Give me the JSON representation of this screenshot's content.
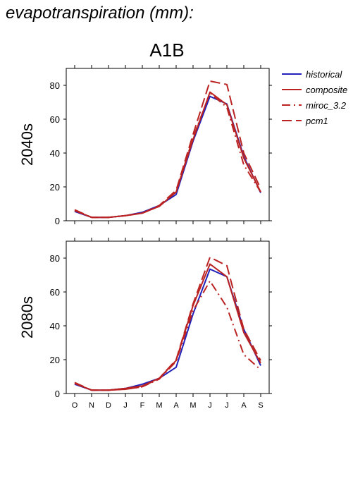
{
  "title": "evapotranspiration (mm):",
  "scenario": "A1B",
  "colors": {
    "historical": "#2222bb",
    "future": "#bb2222"
  },
  "chart_data": {
    "type": "line",
    "categories": [
      "O",
      "N",
      "D",
      "J",
      "F",
      "M",
      "A",
      "M",
      "J",
      "J",
      "A",
      "S"
    ],
    "ylim": [
      0,
      90
    ],
    "yticks": [
      0,
      20,
      40,
      60,
      80
    ],
    "legend": [
      {
        "key": "historical",
        "label": "historical",
        "color": "#2222bb",
        "dash": "solid"
      },
      {
        "key": "composite",
        "label": "composite",
        "color": "#bb2222",
        "dash": "solid"
      },
      {
        "key": "miroc",
        "label": "miroc_3.2",
        "color": "#bb2222",
        "dash": "dashdot"
      },
      {
        "key": "pcm1",
        "label": "pcm1",
        "color": "#bb2222",
        "dash": "dash"
      }
    ],
    "panels": [
      {
        "label": "2040s",
        "series": [
          {
            "key": "historical",
            "values": [
              5.5,
              2,
              2,
              3,
              5,
              9,
              15.5,
              47,
              73.5,
              69,
              38,
              16.5
            ]
          },
          {
            "key": "composite",
            "values": [
              6,
              2,
              2,
              3,
              4.5,
              8.5,
              17,
              48,
              76,
              68.5,
              37,
              17
            ]
          },
          {
            "key": "miroc",
            "values": [
              6,
              2,
              2,
              3,
              4.5,
              8.5,
              17,
              49,
              75.5,
              67,
              33,
              17
            ]
          },
          {
            "key": "pcm1",
            "values": [
              6.5,
              2,
              2,
              3,
              4.5,
              9,
              18,
              51,
              82.5,
              80.5,
              40,
              19
            ]
          }
        ]
      },
      {
        "label": "2080s",
        "series": [
          {
            "key": "historical",
            "values": [
              5.5,
              2,
              2,
              3,
              5.5,
              9,
              15.5,
              47,
              73.5,
              69,
              38,
              16.5
            ]
          },
          {
            "key": "composite",
            "values": [
              6,
              2,
              2,
              3,
              4.5,
              9,
              19.5,
              52,
              76.5,
              69,
              36,
              18
            ]
          },
          {
            "key": "miroc",
            "values": [
              6,
              2,
              2,
              2.5,
              4,
              8.5,
              19,
              49,
              66.5,
              51,
              23,
              14
            ]
          },
          {
            "key": "pcm1",
            "values": [
              6.5,
              2,
              2,
              2.5,
              4,
              9,
              20,
              53,
              80.5,
              75.5,
              38,
              19.5
            ]
          }
        ]
      }
    ]
  }
}
